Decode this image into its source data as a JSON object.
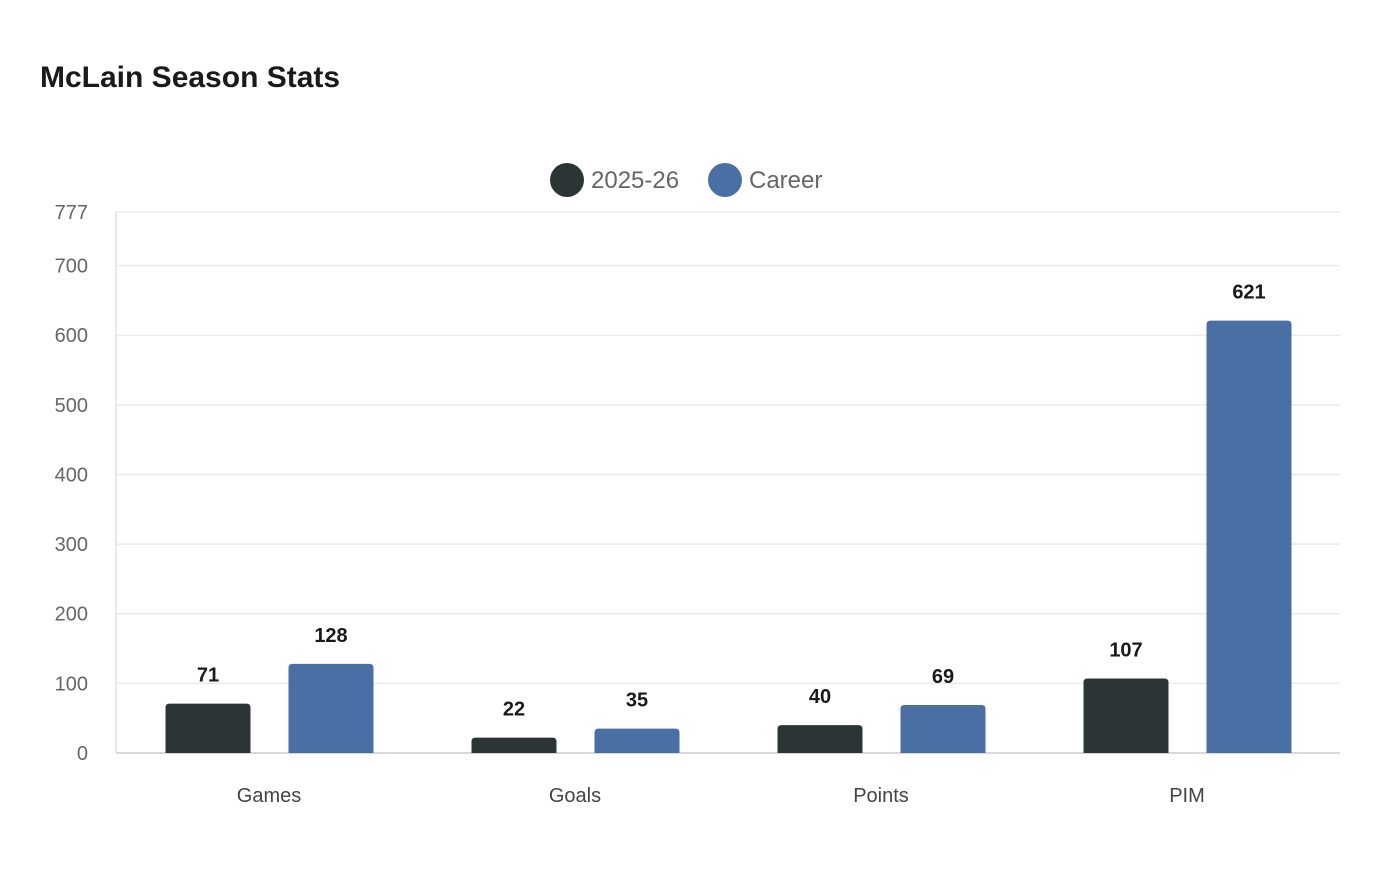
{
  "chart_data": {
    "type": "bar",
    "title": "McLain Season Stats",
    "categories": [
      "Games",
      "Goals",
      "Points",
      "PIM"
    ],
    "series": [
      {
        "name": "2025-26",
        "values": [
          71,
          22,
          40,
          107
        ],
        "color": "#2d3436"
      },
      {
        "name": "Career",
        "values": [
          128,
          35,
          69,
          621
        ],
        "color": "#4a6fa5"
      }
    ],
    "xlabel": "",
    "ylabel": "",
    "ylim": [
      0,
      777
    ],
    "yticks": [
      0,
      100,
      200,
      300,
      400,
      500,
      600,
      700,
      777
    ],
    "grid": true,
    "legend": "top-center",
    "data_labels": true
  }
}
